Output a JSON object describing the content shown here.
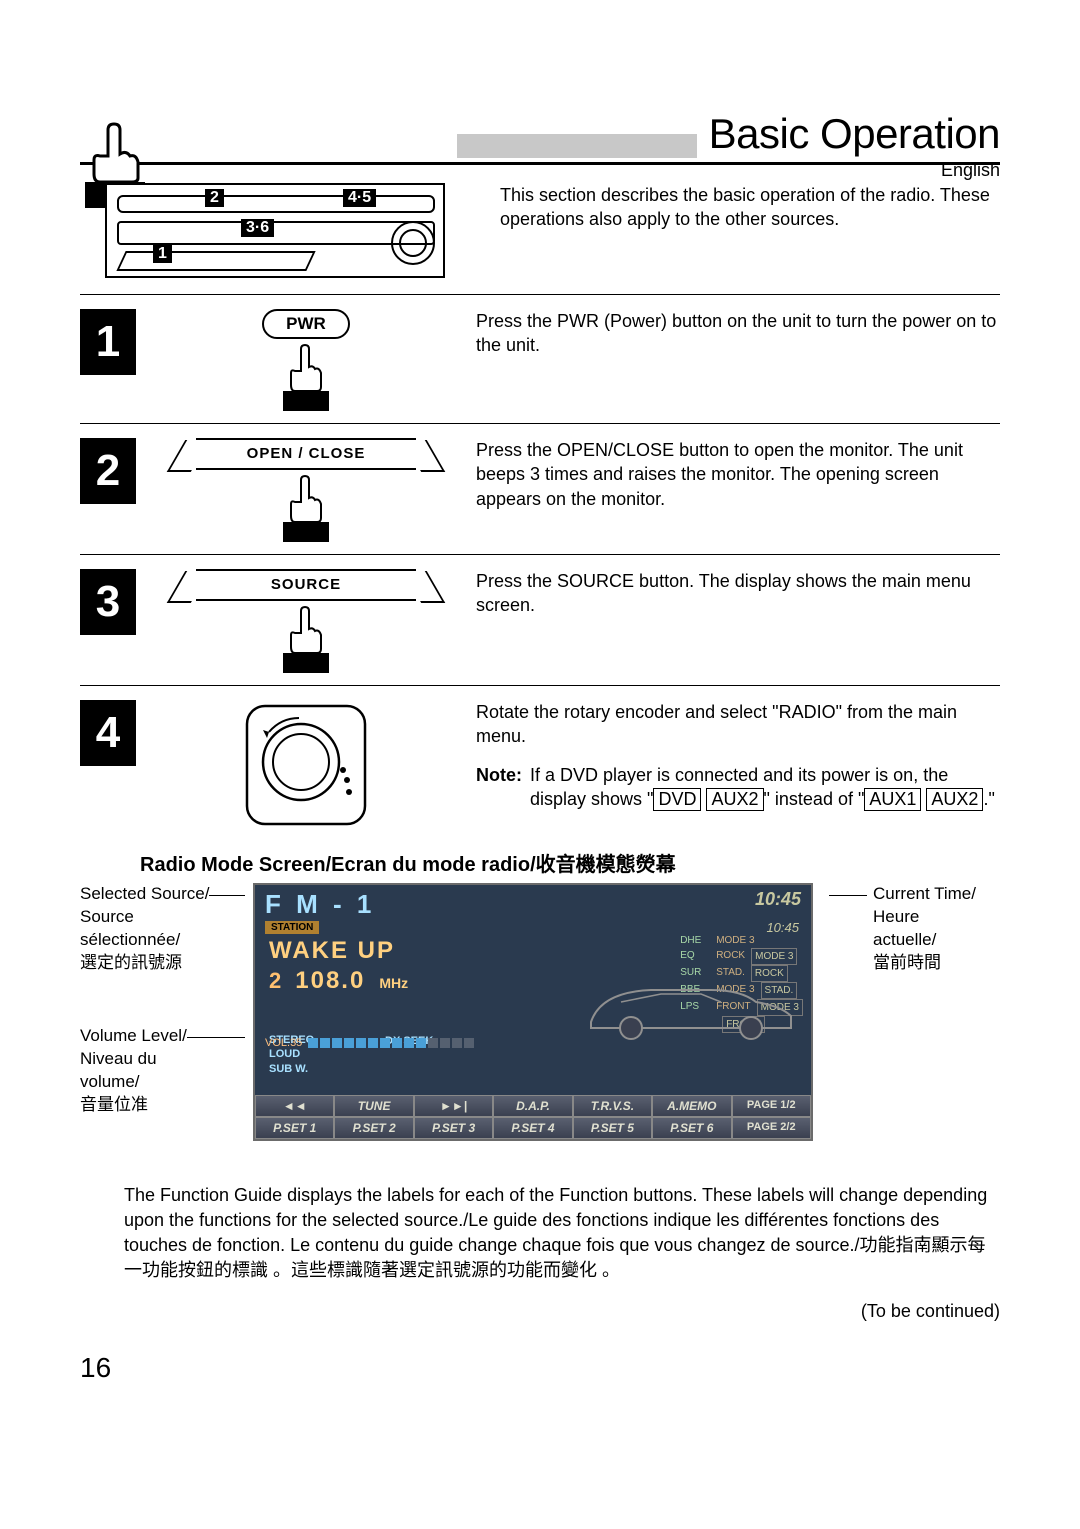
{
  "language_label": "English",
  "title": "Basic Operation",
  "intro_text": "This section describes the basic operation of the radio. These operations also apply to the other sources.",
  "unit_diagram": {
    "badges": [
      "1",
      "2",
      "3·6",
      "4·5"
    ]
  },
  "steps": [
    {
      "num": "1",
      "button_label": "PWR",
      "text": "Press the PWR (Power) button on the unit to turn the power on to the unit."
    },
    {
      "num": "2",
      "button_label": "OPEN / CLOSE",
      "text": "Press the OPEN/CLOSE button to open the monitor. The unit beeps 3 times and raises the monitor. The opening screen appears on the monitor."
    },
    {
      "num": "3",
      "button_label": "SOURCE",
      "text": "Press the SOURCE button. The display shows the main menu screen."
    },
    {
      "num": "4",
      "text": "Rotate the rotary encoder and select \"RADIO\" from the main menu.",
      "note_label": "Note:",
      "note_pre": "If a DVD player is connected and its power is on, the display shows \"",
      "note_box1": "DVD",
      "note_box2": "AUX2",
      "note_mid": "\" instead of \"",
      "note_box3": "AUX1",
      "note_box4": "AUX2",
      "note_end": ".\""
    }
  ],
  "radio_heading": "Radio Mode Screen/Ecran du mode radio/收音機模態熒幕",
  "left_labels": {
    "source": "Selected Source/\nSource\nsélectionnée/\n選定的訊號源",
    "volume": "Volume Level/\nNiveau du\nvolume/\n音量位准"
  },
  "right_labels": {
    "time": "Current Time/\nHeure\nactuelle/\n當前時間"
  },
  "screen": {
    "source": "F M - 1",
    "time": "10:45",
    "mini_time": "10:45",
    "station_tag": "STATION",
    "title_text": "WAKE UP",
    "preset_num": "2",
    "frequency": "108.0",
    "freq_unit": "MHz",
    "status_left": [
      "STEREO",
      "LOUD",
      "SUB W."
    ],
    "dx": "DX SEEK",
    "right_grid": [
      {
        "k": "DHE",
        "v": "MODE 3"
      },
      {
        "k": "EQ",
        "v": "ROCK",
        "v2": "MODE 3"
      },
      {
        "k": "SUR",
        "v": "STAD.",
        "v2": "ROCK"
      },
      {
        "k": "BBE",
        "v": "MODE 3",
        "v2": "STAD."
      },
      {
        "k": "LPS",
        "v": "FRONT",
        "v2": "MODE 3"
      },
      {
        "k": "",
        "v": "",
        "v2": "FRONT"
      }
    ],
    "volume_label": "VOL.35",
    "volume_bars_on": 10,
    "volume_bars_total": 14,
    "fn_row1": [
      "◄◄",
      "TUNE",
      "►►|",
      "D.A.P.",
      "T.R.V.S.",
      "A.MEMO",
      "PAGE 1/2"
    ],
    "fn_row2": [
      "P.SET 1",
      "P.SET 2",
      "P.SET 3",
      "P.SET 4",
      "P.SET 5",
      "P.SET 6",
      "PAGE 2/2"
    ],
    "colors": {
      "bg": "#2a3a4f",
      "text": "#d8d8b8",
      "accent": "#ffd080",
      "cyan": "#a8e0ff",
      "orange": "#ffc070",
      "bar_on": "#4aa0d8",
      "bar_off": "#556070"
    }
  },
  "function_guide": "The Function Guide displays the labels for each of the Function buttons. These labels will change depending upon the functions for the selected source./Le guide des fonctions indique les différentes fonctions des touches de fonction. Le contenu du guide change chaque fois que vous changez de source./功能指南顯示每一功能按鈕的標識 。這些標識隨著選定訊號源的功能而變化 。",
  "continued": "(To be continued)",
  "page_number": "16"
}
